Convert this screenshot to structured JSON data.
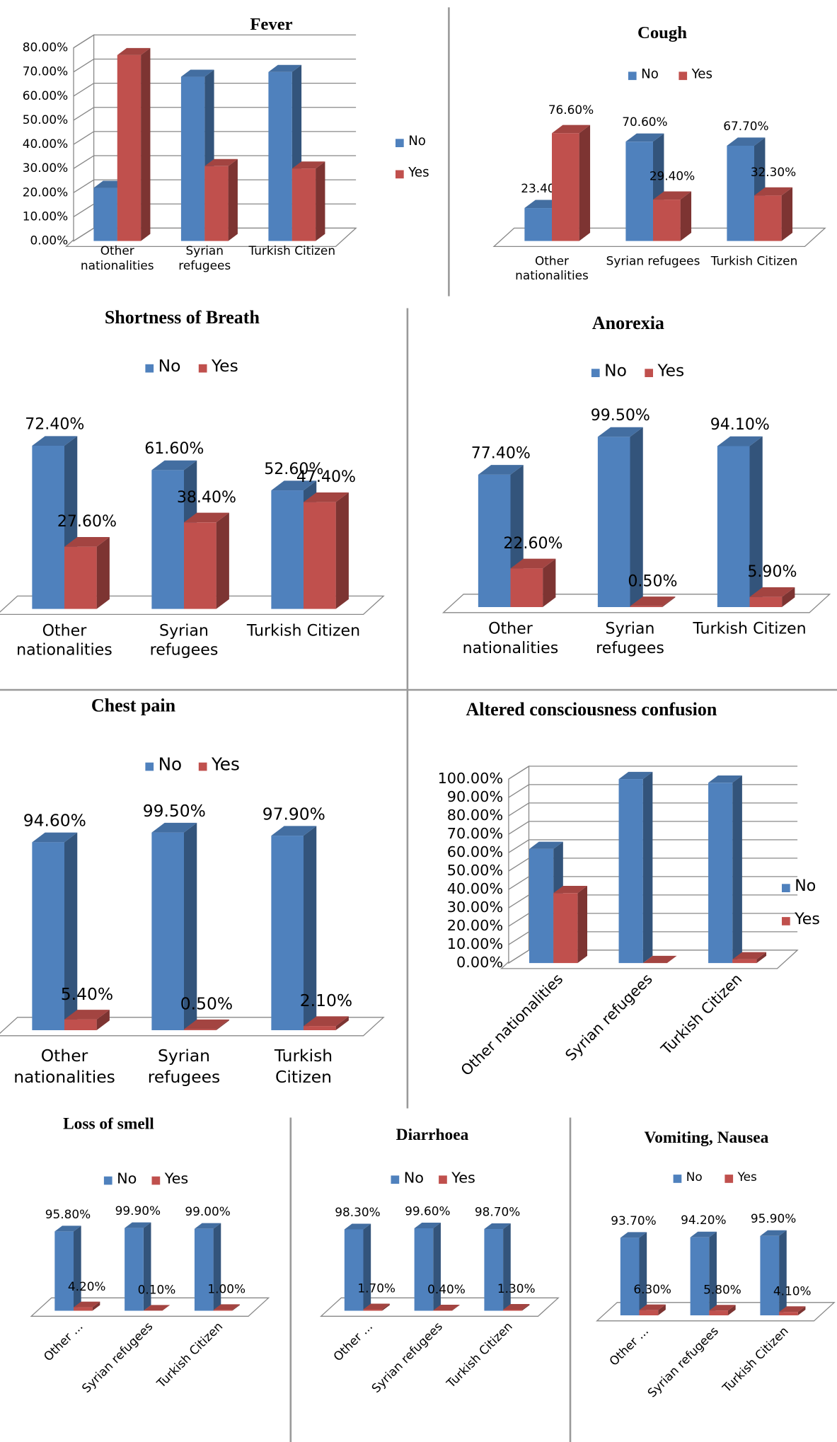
{
  "chart_data": [
    {
      "type": "bar",
      "title": "Fever",
      "categories": [
        "Other nationalities",
        "Syrian refugees",
        "Turkish Citizen"
      ],
      "series": [
        {
          "name": "No",
          "color": "#4f81bd",
          "values": [
            22,
            68,
            70
          ]
        },
        {
          "name": "Yes",
          "color": "#c0504d",
          "values": [
            77,
            31,
            30
          ]
        }
      ],
      "ylim": [
        0,
        80
      ],
      "yticks": [
        {
          "value": 0,
          "label": "0.00%"
        },
        {
          "value": 10,
          "label": "10.00%"
        },
        {
          "value": 20,
          "label": "20.00%"
        },
        {
          "value": 30,
          "label": "30.00%"
        },
        {
          "value": 40,
          "label": "40.00%"
        },
        {
          "value": 50,
          "label": "50.00%"
        },
        {
          "value": 60,
          "label": "60.00%"
        },
        {
          "value": 70,
          "label": "70.00%"
        },
        {
          "value": 80,
          "label": "80.00%"
        }
      ],
      "grid": true,
      "legend": "right"
    },
    {
      "type": "bar",
      "title": "Cough",
      "categories": [
        "Other nationalities",
        "Syrian refugees",
        "Turkish Citizen"
      ],
      "series": [
        {
          "name": "No",
          "color": "#4f81bd",
          "values": [
            23.4,
            70.6,
            67.7
          ],
          "value_labels": [
            "23.40%",
            "70.60%",
            "67.70%"
          ]
        },
        {
          "name": "Yes",
          "color": "#c0504d",
          "values": [
            76.6,
            29.4,
            32.3
          ],
          "value_labels": [
            "76.60%",
            "29.40%",
            "32.30%"
          ]
        }
      ],
      "legend": "top"
    },
    {
      "type": "bar",
      "title": "Shortness of Breath",
      "categories": [
        "Other nationalities",
        "Syrian refugees",
        "Turkish Citizen"
      ],
      "series": [
        {
          "name": "No",
          "color": "#4f81bd",
          "values": [
            72.4,
            61.6,
            52.6
          ],
          "value_labels": [
            "72.40%",
            "61.60%",
            "52.60%"
          ]
        },
        {
          "name": "Yes",
          "color": "#c0504d",
          "values": [
            27.6,
            38.4,
            47.4
          ],
          "value_labels": [
            "27.60%",
            "38.40%",
            "47.40%"
          ]
        }
      ],
      "legend": "top"
    },
    {
      "type": "bar",
      "title": "Anorexia",
      "categories": [
        "Other nationalities",
        "Syrian refugees",
        "Turkish Citizen"
      ],
      "series": [
        {
          "name": "No",
          "color": "#4f81bd",
          "values": [
            77.4,
            99.5,
            94.1
          ],
          "value_labels": [
            "77.40%",
            "99.50%",
            "94.10%"
          ]
        },
        {
          "name": "Yes",
          "color": "#c0504d",
          "values": [
            22.6,
            0.5,
            5.9
          ],
          "value_labels": [
            "22.60%",
            "0.50%",
            "5.90%"
          ]
        }
      ],
      "legend": "top"
    },
    {
      "type": "bar",
      "title": "Chest pain",
      "categories": [
        "Other nationalities",
        "Syrian refugees",
        "Turkish Citizen"
      ],
      "series": [
        {
          "name": "No",
          "color": "#4f81bd",
          "values": [
            94.6,
            99.5,
            97.9
          ],
          "value_labels": [
            "94.60%",
            "99.50%",
            "97.90%"
          ]
        },
        {
          "name": "Yes",
          "color": "#c0504d",
          "values": [
            5.4,
            0.5,
            2.1
          ],
          "value_labels": [
            "5.40%",
            "0.50%",
            "2.10%"
          ]
        }
      ],
      "legend": "top"
    },
    {
      "type": "bar",
      "title": "Altered consciousness confusion",
      "categories": [
        "Other nationalities",
        "Syrian refugees",
        "Turkish Citizen"
      ],
      "series": [
        {
          "name": "No",
          "color": "#4f81bd",
          "values": [
            62,
            100,
            98
          ]
        },
        {
          "name": "Yes",
          "color": "#c0504d",
          "values": [
            38,
            0,
            2
          ]
        }
      ],
      "ylim": [
        0,
        100
      ],
      "yticks": [
        {
          "value": 0,
          "label": "0.00%"
        },
        {
          "value": 10,
          "label": "10.00%"
        },
        {
          "value": 20,
          "label": "20.00%"
        },
        {
          "value": 30,
          "label": "30.00%"
        },
        {
          "value": 40,
          "label": "40.00%"
        },
        {
          "value": 50,
          "label": "50.00%"
        },
        {
          "value": 60,
          "label": "60.00%"
        },
        {
          "value": 70,
          "label": "70.00%"
        },
        {
          "value": 80,
          "label": "80.00%"
        },
        {
          "value": 90,
          "label": "90.00%"
        },
        {
          "value": 100,
          "label": "100.00%"
        }
      ],
      "grid": true,
      "legend": "right"
    },
    {
      "type": "bar",
      "title": "Loss of smell",
      "categories": [
        "Other ...",
        "Syrian refugees",
        "Turkish Citizen"
      ],
      "series": [
        {
          "name": "No",
          "color": "#4f81bd",
          "values": [
            95.8,
            99.9,
            99.0
          ],
          "value_labels": [
            "95.80%",
            "99.90%",
            "99.00%"
          ]
        },
        {
          "name": "Yes",
          "color": "#c0504d",
          "values": [
            4.2,
            0.1,
            1.0
          ],
          "value_labels": [
            "4.20%",
            "0.10%",
            "1.00%"
          ]
        }
      ],
      "legend": "top"
    },
    {
      "type": "bar",
      "title": "Diarrhoea",
      "categories": [
        "Other ...",
        "Syrian refugees",
        "Turkish Citizen"
      ],
      "series": [
        {
          "name": "No",
          "color": "#4f81bd",
          "values": [
            98.3,
            99.6,
            98.7
          ],
          "value_labels": [
            "98.30%",
            "99.60%",
            "98.70%"
          ]
        },
        {
          "name": "Yes",
          "color": "#c0504d",
          "values": [
            1.7,
            0.4,
            1.3
          ],
          "value_labels": [
            "1.70%",
            "0.40%",
            "1.30%"
          ]
        }
      ],
      "legend": "top"
    },
    {
      "type": "bar",
      "title": "Vomiting, Nausea",
      "categories": [
        "Other ...",
        "Syrian refugees",
        "Turkish Citizen"
      ],
      "series": [
        {
          "name": "No",
          "color": "#4f81bd",
          "values": [
            93.7,
            94.2,
            95.9
          ],
          "value_labels": [
            "93.70%",
            "94.20%",
            "95.90%"
          ]
        },
        {
          "name": "Yes",
          "color": "#c0504d",
          "values": [
            6.3,
            5.8,
            4.1
          ],
          "value_labels": [
            "6.30%",
            "5.80%",
            "4.10%"
          ]
        }
      ],
      "legend": "top"
    }
  ]
}
